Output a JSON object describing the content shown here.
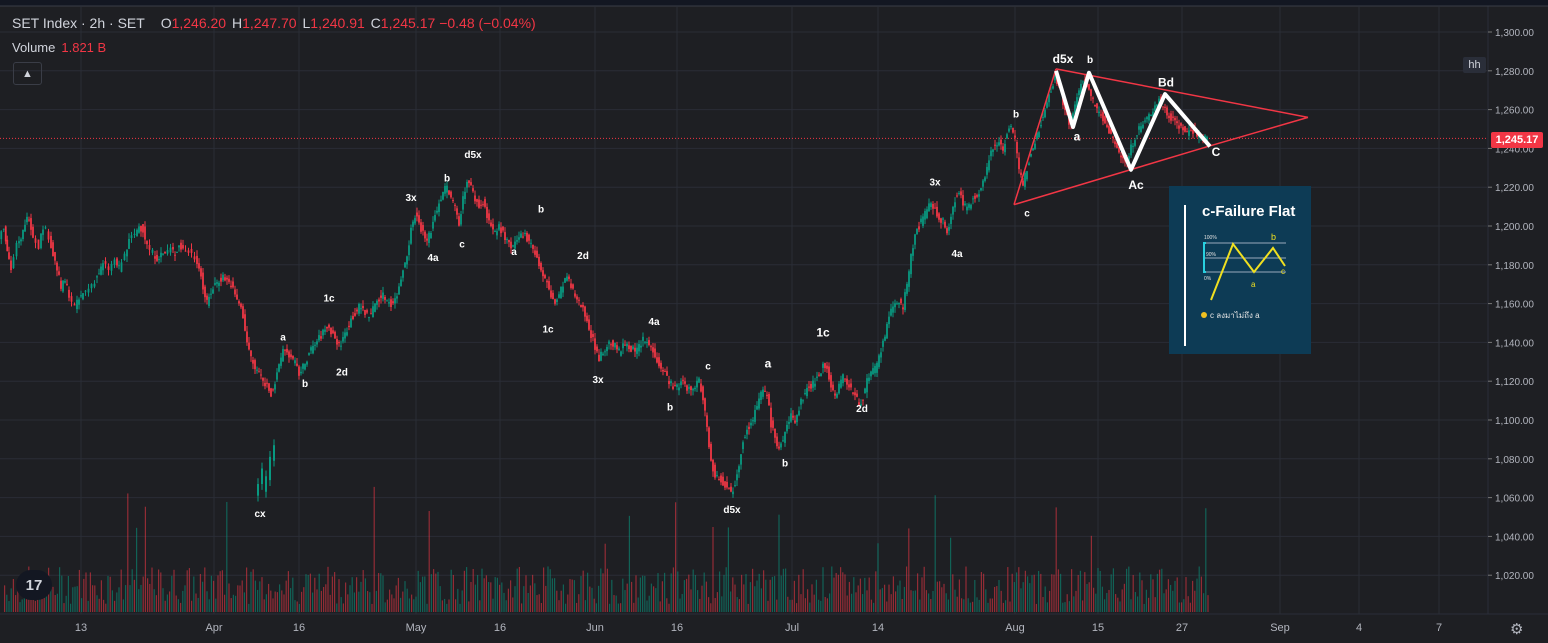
{
  "header": {
    "symbol": "SET Index · 2h · SET",
    "o_label": "O",
    "o_value": "1,246.20",
    "h_label": "H",
    "h_value": "1,247.70",
    "l_label": "L",
    "l_value": "1,240.91",
    "c_label": "C",
    "c_value": "1,245.17",
    "change": "−0.48 (−0.04%)",
    "volume_label": "Volume",
    "volume_value": "1.821 B"
  },
  "controls": {
    "collapse_icon": "chevron-up-icon",
    "hh_label": "hh",
    "settings_icon": "gear-icon",
    "logo_text": "17"
  },
  "price_axis": {
    "ticks": [
      "1,300.00",
      "1,280.00",
      "1,260.00",
      "1,240.00",
      "1,220.00",
      "1,200.00",
      "1,180.00",
      "1,160.00",
      "1,140.00",
      "1,120.00",
      "1,100.00",
      "1,080.00",
      "1,060.00",
      "1,040.00",
      "1,020.00"
    ],
    "last_price": "1,245.17"
  },
  "time_axis": {
    "ticks": [
      "13",
      "Apr",
      "16",
      "May",
      "16",
      "Jun",
      "16",
      "Jul",
      "14",
      "Aug",
      "15",
      "27",
      "Sep",
      "4",
      "7"
    ]
  },
  "colors": {
    "up": "#089981",
    "down": "#f23645",
    "triangle": "#f23645",
    "inset_bg": "#0d3b55",
    "inset_line": "#f0e020"
  },
  "wave_labels": [
    "cx",
    "a",
    "b",
    "1c",
    "2d",
    "3x",
    "4a",
    "b",
    "d5x",
    "c",
    "a",
    "b",
    "1c",
    "2d",
    "3x",
    "4a",
    "b",
    "c",
    "d5x",
    "a",
    "b",
    "1c",
    "2d",
    "3x",
    "4a",
    "b",
    "c",
    "d5x",
    "b",
    "a",
    "Bd",
    "Ac",
    "C"
  ],
  "inset": {
    "title": "c-Failure Flat",
    "pct_100": "100%",
    "pct_90": "90%",
    "pct_0": "0%",
    "lbl_b": "b",
    "lbl_a": "a",
    "lbl_c": "c",
    "note": "c ลงมาไม่ถึง a"
  },
  "chart_data": {
    "type": "candlestick",
    "title": "SET Index · 2h · SET",
    "ylim": [
      1010,
      1305
    ],
    "y_ticks": [
      1300,
      1280,
      1260,
      1240,
      1220,
      1200,
      1180,
      1160,
      1140,
      1120,
      1100,
      1080,
      1060,
      1040,
      1020
    ],
    "x_ticks": [
      "13",
      "Apr",
      "16",
      "May",
      "16",
      "Jun",
      "16",
      "Jul",
      "14",
      "Aug",
      "15",
      "27",
      "Sep",
      "4",
      "7"
    ],
    "last_price": 1245.17,
    "path_points": [
      [
        0,
        1195
      ],
      [
        5,
        1200
      ],
      [
        8,
        1188
      ],
      [
        12,
        1178
      ],
      [
        18,
        1190
      ],
      [
        22,
        1192
      ],
      [
        26,
        1202
      ],
      [
        30,
        1205
      ],
      [
        34,
        1195
      ],
      [
        40,
        1190
      ],
      [
        44,
        1200
      ],
      [
        50,
        1195
      ],
      [
        54,
        1185
      ],
      [
        58,
        1178
      ],
      [
        62,
        1168
      ],
      [
        66,
        1172
      ],
      [
        70,
        1165
      ],
      [
        76,
        1158
      ],
      [
        80,
        1162
      ],
      [
        84,
        1165
      ],
      [
        90,
        1168
      ],
      [
        96,
        1172
      ],
      [
        100,
        1176
      ],
      [
        104,
        1180
      ],
      [
        110,
        1178
      ],
      [
        116,
        1182
      ],
      [
        120,
        1178
      ],
      [
        126,
        1185
      ],
      [
        130,
        1192
      ],
      [
        136,
        1196
      ],
      [
        140,
        1200
      ],
      [
        144,
        1198
      ],
      [
        148,
        1190
      ],
      [
        154,
        1186
      ],
      [
        158,
        1184
      ],
      [
        162,
        1185
      ],
      [
        166,
        1186
      ],
      [
        172,
        1188
      ],
      [
        176,
        1186
      ],
      [
        180,
        1190
      ],
      [
        184,
        1188
      ],
      [
        190,
        1187
      ],
      [
        196,
        1184
      ],
      [
        200,
        1180
      ],
      [
        204,
        1168
      ],
      [
        208,
        1160
      ],
      [
        212,
        1166
      ],
      [
        216,
        1170
      ],
      [
        220,
        1172
      ],
      [
        224,
        1174
      ],
      [
        228,
        1172
      ],
      [
        232,
        1170
      ],
      [
        236,
        1164
      ],
      [
        240,
        1160
      ],
      [
        244,
        1154
      ],
      [
        248,
        1140
      ],
      [
        252,
        1132
      ],
      [
        256,
        1126
      ],
      [
        260,
        1125
      ],
      [
        264,
        1120
      ],
      [
        268,
        1118
      ],
      [
        272,
        1114
      ],
      [
        276,
        1119
      ],
      [
        280,
        1127
      ],
      [
        284,
        1137
      ],
      [
        288,
        1135
      ],
      [
        292,
        1132
      ],
      [
        296,
        1129
      ],
      [
        300,
        1124
      ],
      [
        304,
        1127
      ],
      [
        308,
        1132
      ],
      [
        312,
        1136
      ],
      [
        316,
        1139
      ],
      [
        320,
        1142
      ],
      [
        324,
        1145
      ],
      [
        328,
        1148
      ],
      [
        332,
        1146
      ],
      [
        336,
        1142
      ],
      [
        340,
        1138
      ],
      [
        344,
        1142
      ],
      [
        348,
        1147
      ],
      [
        352,
        1152
      ],
      [
        356,
        1155
      ],
      [
        360,
        1158
      ],
      [
        364,
        1157
      ],
      [
        368,
        1154
      ],
      [
        372,
        1155
      ],
      [
        376,
        1160
      ],
      [
        380,
        1163
      ],
      [
        384,
        1164
      ],
      [
        388,
        1162
      ],
      [
        392,
        1160
      ],
      [
        396,
        1162
      ],
      [
        400,
        1168
      ],
      [
        404,
        1178
      ],
      [
        408,
        1186
      ],
      [
        412,
        1198
      ],
      [
        416,
        1206
      ],
      [
        420,
        1202
      ],
      [
        424,
        1196
      ],
      [
        428,
        1192
      ],
      [
        432,
        1198
      ],
      [
        436,
        1206
      ],
      [
        440,
        1212
      ],
      [
        444,
        1218
      ],
      [
        448,
        1220
      ],
      [
        452,
        1214
      ],
      [
        456,
        1210
      ],
      [
        460,
        1202
      ],
      [
        464,
        1214
      ],
      [
        468,
        1224
      ],
      [
        472,
        1220
      ],
      [
        476,
        1214
      ],
      [
        480,
        1210
      ],
      [
        484,
        1212
      ],
      [
        488,
        1206
      ],
      [
        492,
        1200
      ],
      [
        496,
        1196
      ],
      [
        500,
        1200
      ],
      [
        504,
        1196
      ],
      [
        508,
        1192
      ],
      [
        512,
        1188
      ],
      [
        516,
        1190
      ],
      [
        520,
        1194
      ],
      [
        524,
        1196
      ],
      [
        528,
        1194
      ],
      [
        532,
        1192
      ],
      [
        536,
        1186
      ],
      [
        540,
        1180
      ],
      [
        544,
        1174
      ],
      [
        548,
        1170
      ],
      [
        552,
        1164
      ],
      [
        556,
        1160
      ],
      [
        560,
        1164
      ],
      [
        564,
        1170
      ],
      [
        568,
        1174
      ],
      [
        572,
        1168
      ],
      [
        576,
        1164
      ],
      [
        580,
        1160
      ],
      [
        584,
        1158
      ],
      [
        588,
        1152
      ],
      [
        592,
        1144
      ],
      [
        596,
        1138
      ],
      [
        600,
        1132
      ],
      [
        604,
        1135
      ],
      [
        608,
        1138
      ],
      [
        612,
        1140
      ],
      [
        616,
        1138
      ],
      [
        620,
        1135
      ],
      [
        624,
        1138
      ],
      [
        628,
        1140
      ],
      [
        632,
        1137
      ],
      [
        636,
        1135
      ],
      [
        640,
        1138
      ],
      [
        644,
        1141
      ],
      [
        648,
        1140
      ],
      [
        652,
        1137
      ],
      [
        656,
        1134
      ],
      [
        660,
        1129
      ],
      [
        664,
        1126
      ],
      [
        668,
        1122
      ],
      [
        672,
        1119
      ],
      [
        676,
        1116
      ],
      [
        680,
        1118
      ],
      [
        684,
        1120
      ],
      [
        688,
        1117
      ],
      [
        692,
        1114
      ],
      [
        696,
        1118
      ],
      [
        700,
        1120
      ],
      [
        704,
        1112
      ],
      [
        708,
        1096
      ],
      [
        712,
        1078
      ],
      [
        716,
        1072
      ],
      [
        720,
        1070
      ],
      [
        724,
        1068
      ],
      [
        728,
        1066
      ],
      [
        732,
        1062
      ],
      [
        736,
        1068
      ],
      [
        740,
        1078
      ],
      [
        744,
        1090
      ],
      [
        748,
        1096
      ],
      [
        752,
        1098
      ],
      [
        756,
        1104
      ],
      [
        760,
        1110
      ],
      [
        764,
        1116
      ],
      [
        768,
        1114
      ],
      [
        772,
        1098
      ],
      [
        776,
        1090
      ],
      [
        780,
        1086
      ],
      [
        784,
        1090
      ],
      [
        788,
        1096
      ],
      [
        792,
        1102
      ],
      [
        796,
        1100
      ],
      [
        800,
        1106
      ],
      [
        804,
        1112
      ],
      [
        808,
        1116
      ],
      [
        812,
        1118
      ],
      [
        816,
        1120
      ],
      [
        820,
        1124
      ],
      [
        824,
        1128
      ],
      [
        828,
        1126
      ],
      [
        832,
        1118
      ],
      [
        836,
        1112
      ],
      [
        840,
        1118
      ],
      [
        844,
        1122
      ],
      [
        848,
        1120
      ],
      [
        852,
        1116
      ],
      [
        856,
        1112
      ],
      [
        860,
        1108
      ],
      [
        864,
        1112
      ],
      [
        868,
        1120
      ],
      [
        872,
        1124
      ],
      [
        876,
        1126
      ],
      [
        880,
        1132
      ],
      [
        884,
        1140
      ],
      [
        888,
        1148
      ],
      [
        892,
        1156
      ],
      [
        896,
        1160
      ],
      [
        900,
        1162
      ],
      [
        904,
        1158
      ],
      [
        908,
        1170
      ],
      [
        912,
        1184
      ],
      [
        916,
        1196
      ],
      [
        920,
        1200
      ],
      [
        924,
        1204
      ],
      [
        928,
        1208
      ],
      [
        932,
        1212
      ],
      [
        936,
        1208
      ],
      [
        940,
        1204
      ],
      [
        944,
        1202
      ],
      [
        948,
        1196
      ],
      [
        952,
        1204
      ],
      [
        956,
        1214
      ],
      [
        960,
        1218
      ],
      [
        964,
        1212
      ],
      [
        968,
        1208
      ],
      [
        972,
        1212
      ],
      [
        976,
        1216
      ],
      [
        980,
        1218
      ],
      [
        984,
        1222
      ],
      [
        988,
        1230
      ],
      [
        992,
        1238
      ],
      [
        996,
        1242
      ],
      [
        1000,
        1244
      ],
      [
        1004,
        1240
      ],
      [
        1008,
        1248
      ],
      [
        1012,
        1252
      ],
      [
        1016,
        1244
      ],
      [
        1020,
        1228
      ],
      [
        1024,
        1222
      ],
      [
        1028,
        1230
      ],
      [
        1032,
        1238
      ],
      [
        1036,
        1244
      ],
      [
        1040,
        1250
      ],
      [
        1044,
        1258
      ],
      [
        1048,
        1264
      ],
      [
        1052,
        1270
      ],
      [
        1056,
        1278
      ],
      [
        1060,
        1272
      ],
      [
        1064,
        1264
      ],
      [
        1068,
        1256
      ],
      [
        1072,
        1252
      ],
      [
        1076,
        1262
      ],
      [
        1080,
        1270
      ],
      [
        1084,
        1276
      ],
      [
        1088,
        1272
      ],
      [
        1092,
        1266
      ],
      [
        1096,
        1262
      ],
      [
        1100,
        1258
      ],
      [
        1104,
        1256
      ],
      [
        1108,
        1250
      ],
      [
        1112,
        1246
      ],
      [
        1116,
        1242
      ],
      [
        1120,
        1238
      ],
      [
        1124,
        1236
      ],
      [
        1128,
        1232
      ],
      [
        1132,
        1240
      ],
      [
        1136,
        1246
      ],
      [
        1140,
        1250
      ],
      [
        1144,
        1252
      ],
      [
        1148,
        1255
      ],
      [
        1152,
        1258
      ],
      [
        1156,
        1262
      ],
      [
        1160,
        1265
      ],
      [
        1164,
        1262
      ],
      [
        1168,
        1258
      ],
      [
        1172,
        1256
      ],
      [
        1176,
        1255
      ],
      [
        1180,
        1252
      ],
      [
        1184,
        1250
      ],
      [
        1188,
        1248
      ],
      [
        1192,
        1250
      ],
      [
        1196,
        1248
      ],
      [
        1200,
        1246
      ],
      [
        1204,
        1245
      ],
      [
        1208,
        1245
      ]
    ],
    "triangle": {
      "points": [
        [
          1014,
          1211
        ],
        [
          1056,
          1281
        ],
        [
          1308,
          1256
        ],
        [
          1208,
          1241
        ]
      ]
    },
    "swing_path": [
      [
        1056,
        1280
      ],
      [
        1073,
        1251
      ],
      [
        1089,
        1279
      ],
      [
        1131,
        1229
      ],
      [
        1165,
        1268
      ],
      [
        1210,
        1241
      ]
    ],
    "labels": [
      {
        "text": "cx",
        "x": 260,
        "y": 1050
      },
      {
        "text": "a",
        "x": 283,
        "y": 1141
      },
      {
        "text": "b",
        "x": 305,
        "y": 1117
      },
      {
        "text": "1c",
        "x": 329,
        "y": 1161
      },
      {
        "text": "2d",
        "x": 342,
        "y": 1123
      },
      {
        "text": "3x",
        "x": 411,
        "y": 1213
      },
      {
        "text": "4a",
        "x": 433,
        "y": 1182
      },
      {
        "text": "b",
        "x": 447,
        "y": 1223
      },
      {
        "text": "d5x",
        "x": 473,
        "y": 1235
      },
      {
        "text": "c",
        "x": 462,
        "y": 1189
      },
      {
        "text": "a",
        "x": 514,
        "y": 1185
      },
      {
        "text": "b",
        "x": 541,
        "y": 1207
      },
      {
        "text": "1c",
        "x": 548,
        "y": 1145
      },
      {
        "text": "2d",
        "x": 583,
        "y": 1183
      },
      {
        "text": "3x",
        "x": 598,
        "y": 1119
      },
      {
        "text": "4a",
        "x": 654,
        "y": 1149
      },
      {
        "text": "b",
        "x": 670,
        "y": 1105
      },
      {
        "text": "c",
        "x": 708,
        "y": 1126
      },
      {
        "text": "d5x",
        "x": 732,
        "y": 1052
      },
      {
        "text": "a",
        "x": 768,
        "y": 1127
      },
      {
        "text": "b",
        "x": 785,
        "y": 1076
      },
      {
        "text": "1c",
        "x": 823,
        "y": 1143
      },
      {
        "text": "2d",
        "x": 862,
        "y": 1104
      },
      {
        "text": "3x",
        "x": 935,
        "y": 1221
      },
      {
        "text": "4a",
        "x": 957,
        "y": 1184
      },
      {
        "text": "b",
        "x": 1016,
        "y": 1256
      },
      {
        "text": "c",
        "x": 1027,
        "y": 1205
      },
      {
        "text": "d5x",
        "x": 1063,
        "y": 1284
      },
      {
        "text": "b",
        "x": 1090,
        "y": 1284
      },
      {
        "text": "a",
        "x": 1077,
        "y": 1244
      },
      {
        "text": "Bd",
        "x": 1166,
        "y": 1272
      },
      {
        "text": "Ac",
        "x": 1136,
        "y": 1219
      },
      {
        "text": "C",
        "x": 1216,
        "y": 1236
      }
    ]
  }
}
